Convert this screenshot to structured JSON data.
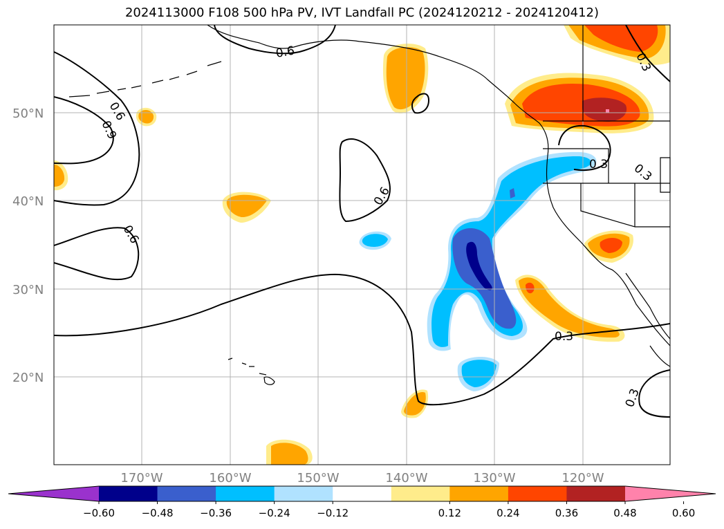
{
  "title": "2024113000 F108 500 hPa PV, IVT Landfall PC (2024120212 - 2024120412)",
  "lat_labels": [
    "50°N",
    "40°N",
    "30°N",
    "20°N"
  ],
  "lon_labels": [
    "170°W",
    "160°W",
    "150°W",
    "140°W",
    "130°W",
    "120°W"
  ],
  "contour_labels": [
    "0.6",
    "0.9",
    "0.6",
    "0.6",
    "0.6",
    "0.3",
    "0.3",
    "0.3",
    "0.3",
    "0.3"
  ],
  "colorbar": {
    "ticks": [
      "−0.60",
      "−0.48",
      "−0.36",
      "−0.24",
      "−0.12",
      "0.12",
      "0.24",
      "0.36",
      "0.48",
      "0.60"
    ],
    "colors": [
      "#9a32cd",
      "#00008b",
      "#3a5fcd",
      "#00bfff",
      "#b0e2ff",
      "#ffffff",
      "#ffec8b",
      "#ffa500",
      "#ff4500",
      "#b22222",
      "#ff82ab"
    ]
  },
  "colors": {
    "land_outline": "#000000",
    "grid": "#b3b3b3",
    "pos_low": "#ffec8b",
    "pos_mid": "#ffa500",
    "pos_high": "#ff4500",
    "pos_top": "#b22222",
    "neg_low": "#b0e2ff",
    "neg_mid": "#00bfff",
    "neg_high": "#3a5fcd",
    "neg_top": "#00008b"
  }
}
